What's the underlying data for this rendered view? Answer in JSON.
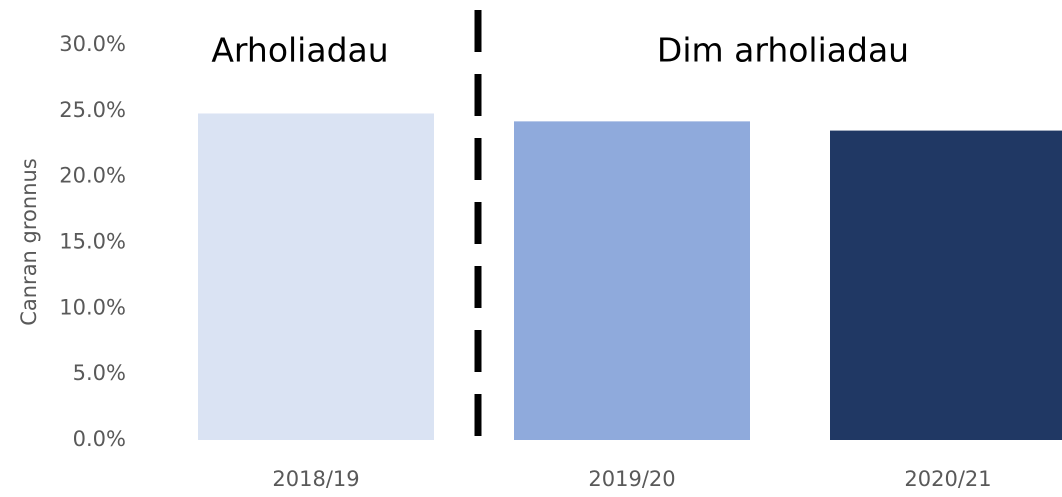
{
  "chart_data": {
    "type": "bar",
    "y_label": "Canran gronnus",
    "annotations": [
      "Arholiadau",
      "Dim arholiadau"
    ],
    "categories": [
      "2018/19",
      "2019/20",
      "2020/21"
    ],
    "values": [
      24.8,
      24.2,
      23.5
    ],
    "colors": [
      "#dae3f3",
      "#8faadc",
      "#203864"
    ],
    "ylim": [
      0,
      30
    ],
    "yticks": [
      {
        "value": 0,
        "label": "0.0%"
      },
      {
        "value": 5,
        "label": "5.0%"
      },
      {
        "value": 10,
        "label": "10.0%"
      },
      {
        "value": 15,
        "label": "15.0%"
      },
      {
        "value": 20,
        "label": "20.0%"
      },
      {
        "value": 25,
        "label": "25.0%"
      },
      {
        "value": 30,
        "label": "30.0%"
      }
    ],
    "grid": false
  }
}
